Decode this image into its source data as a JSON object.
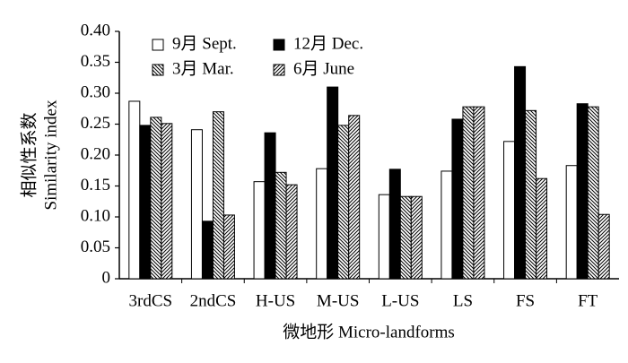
{
  "chart_data": {
    "type": "bar",
    "y_label_lines": [
      "相似性系数",
      "Similarity index"
    ],
    "x_label": "微地形 Micro-landforms",
    "categories": [
      "3rdCS",
      "2ndCS",
      "H-US",
      "M-US",
      "L-US",
      "LS",
      "FS",
      "FT"
    ],
    "series": [
      {
        "name": "9月 Sept.",
        "color": "#ffffff",
        "hatch": "none",
        "values": [
          0.287,
          0.241,
          0.157,
          0.178,
          0.136,
          0.174,
          0.222,
          0.183
        ]
      },
      {
        "name": "12月 Dec.",
        "color": "#000000",
        "hatch": "none",
        "values": [
          0.248,
          0.093,
          0.236,
          0.31,
          0.177,
          0.258,
          0.343,
          0.283
        ]
      },
      {
        "name": "3月 Mar.",
        "color": "#000000",
        "hatch": "backslash",
        "values": [
          0.261,
          0.27,
          0.172,
          0.248,
          0.133,
          0.278,
          0.272,
          0.278
        ]
      },
      {
        "name": "6月 June",
        "color": "#000000",
        "hatch": "slash",
        "values": [
          0.251,
          0.103,
          0.152,
          0.264,
          0.133,
          0.278,
          0.162,
          0.104
        ]
      }
    ],
    "ylim": [
      0,
      0.4
    ],
    "yticks": [
      0,
      0.05,
      {
        "value": 0.1,
        "label": "0.10"
      },
      0.15,
      {
        "value": 0.2,
        "label": "0.20"
      },
      0.25,
      {
        "value": 0.3,
        "label": "0.30"
      },
      0.35,
      {
        "value": 0.4,
        "label": "0.40"
      }
    ],
    "grid": false
  }
}
